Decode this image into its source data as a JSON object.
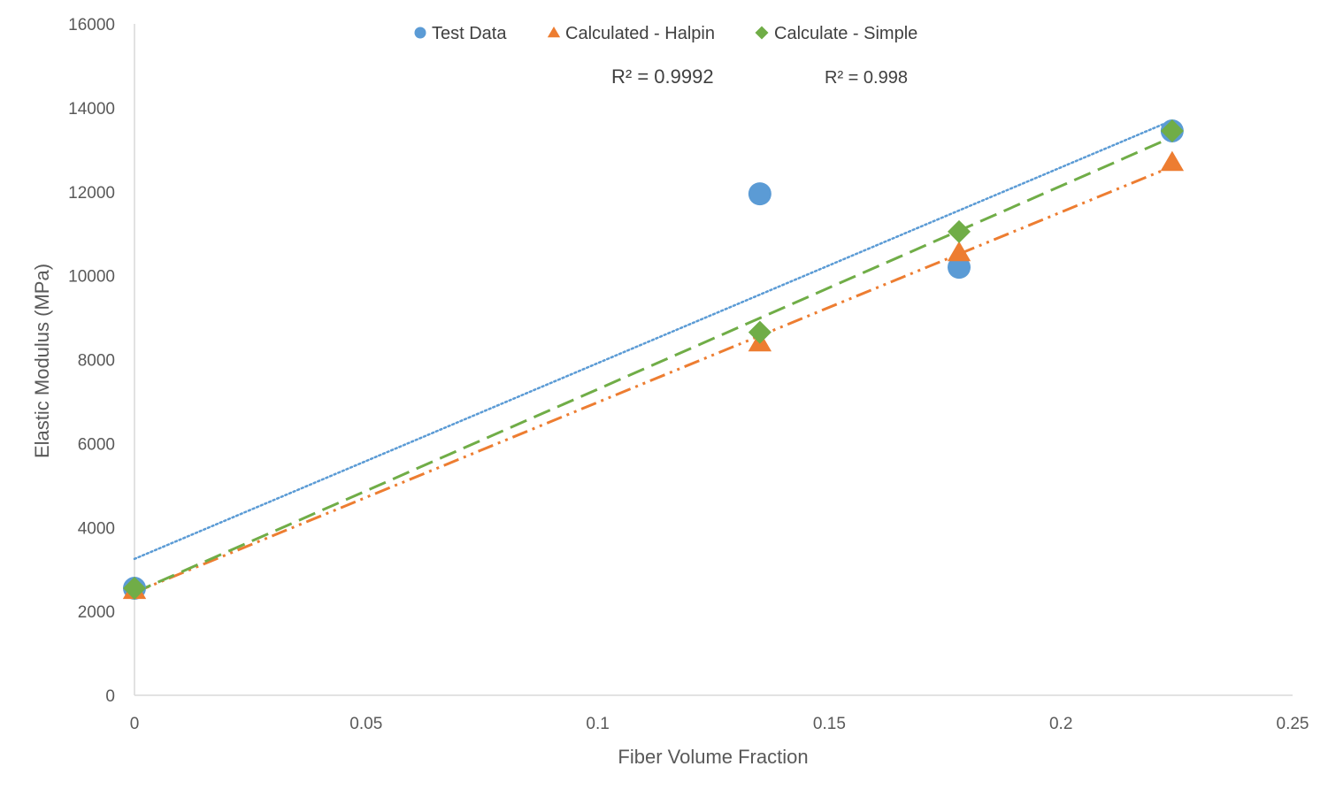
{
  "chart_data": {
    "type": "scatter",
    "xlabel": "Fiber Volume Fraction",
    "ylabel": "Elastic Modulus (MPa)",
    "xlim": [
      0,
      0.25
    ],
    "ylim": [
      0,
      16000
    ],
    "x_ticks": [
      "0",
      "0.05",
      "0.1",
      "0.15",
      "0.2",
      "0.25"
    ],
    "y_ticks": [
      "0",
      "2000",
      "4000",
      "6000",
      "8000",
      "10000",
      "12000",
      "14000",
      "16000"
    ],
    "grid": false,
    "legend_position": "top-center",
    "series": [
      {
        "name": "Test Data",
        "marker": "circle",
        "color": "#5B9BD5",
        "trendline_style": "dotted",
        "x": [
          0,
          0.135,
          0.178,
          0.224
        ],
        "y": [
          2550,
          11950,
          10200,
          13450
        ],
        "trendline": [
          [
            0,
            3250
          ],
          [
            0.224,
            13700
          ]
        ]
      },
      {
        "name": "Calculated - Halpin",
        "marker": "triangle",
        "color": "#ED7D31",
        "trendline_style": "dash-dot-dot",
        "x": [
          0,
          0.135,
          0.178,
          0.224
        ],
        "y": [
          2500,
          8400,
          10550,
          12700
        ],
        "trendline": [
          [
            0,
            2450
          ],
          [
            0.224,
            12600
          ]
        ]
      },
      {
        "name": "Calculate - Simple",
        "marker": "diamond",
        "color": "#70AD47",
        "trendline_style": "dashed",
        "x": [
          0,
          0.135,
          0.178,
          0.224
        ],
        "y": [
          2550,
          8650,
          11050,
          13450
        ],
        "trendline": [
          [
            0,
            2450
          ],
          [
            0.224,
            13300
          ]
        ]
      }
    ],
    "annotations": [
      {
        "text": "R² = 0.9992"
      },
      {
        "text": "R² = 0.998"
      }
    ]
  }
}
